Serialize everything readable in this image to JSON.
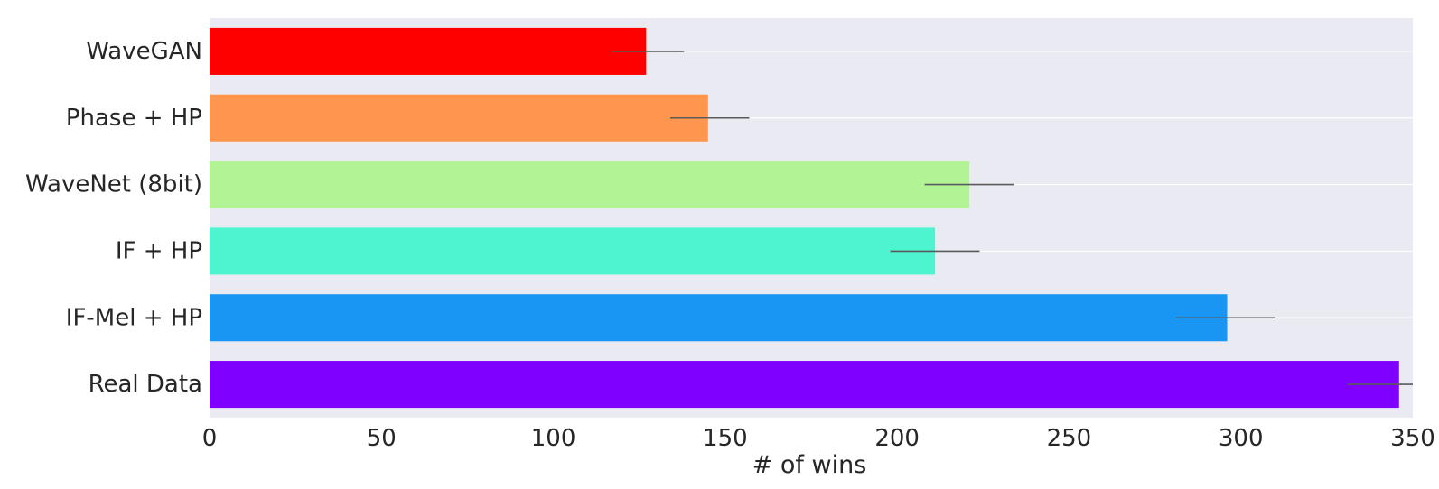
{
  "chart_data": {
    "type": "bar",
    "orientation": "horizontal",
    "title": "",
    "xlabel": "# of wins",
    "ylabel": "",
    "xlim": [
      0,
      350
    ],
    "x_ticks": [
      0,
      50,
      100,
      150,
      200,
      250,
      300,
      350
    ],
    "grid": true,
    "categories": [
      "WaveGAN",
      "Phase + HP",
      "WaveNet (8bit)",
      "IF + HP",
      "IF-Mel + HP",
      "Real Data"
    ],
    "values": [
      127,
      145,
      221,
      211,
      296,
      346
    ],
    "error_low": [
      117,
      134,
      208,
      198,
      281,
      331
    ],
    "error_high": [
      138,
      157,
      234,
      224,
      310,
      350
    ],
    "colors": [
      "#ff0000",
      "#ff9650",
      "#b2f396",
      "#4ef3cf",
      "#1996f3",
      "#8000ff"
    ],
    "background": "#eaeaf2",
    "error_color": "#5a5a5a"
  }
}
